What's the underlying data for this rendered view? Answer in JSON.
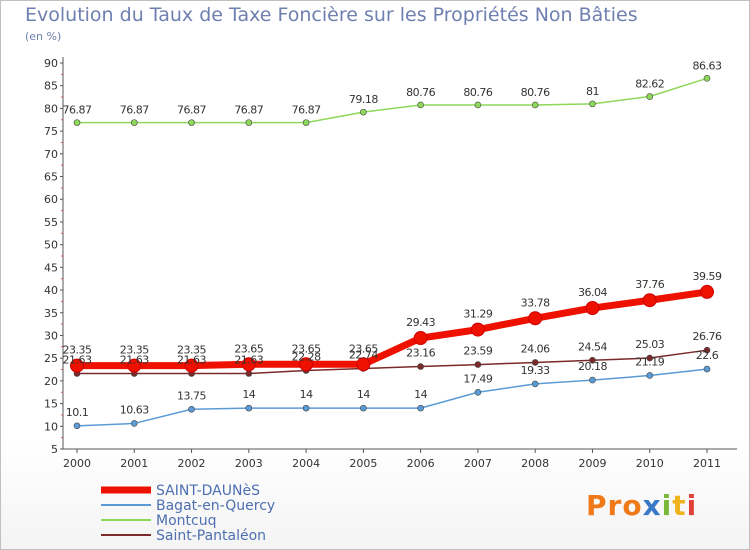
{
  "chart_data": {
    "type": "line",
    "title": "Evolution du Taux de Taxe Foncière sur les Propriétés Non Bâties",
    "subtitle": "(en %)",
    "categories": [
      "2000",
      "2001",
      "2002",
      "2003",
      "2004",
      "2005",
      "2006",
      "2007",
      "2008",
      "2009",
      "2010",
      "2011"
    ],
    "yticks": [
      5,
      10,
      15,
      20,
      25,
      30,
      35,
      40,
      45,
      50,
      55,
      60,
      65,
      70,
      75,
      80,
      85,
      90
    ],
    "ylim": [
      5,
      90
    ],
    "grid": false,
    "legend_position": "bottom-left",
    "series": [
      {
        "name": "SAINT-DAUNèS",
        "color": "#ee1100",
        "values": [
          23.35,
          23.35,
          23.35,
          23.65,
          23.65,
          23.65,
          29.43,
          31.29,
          33.78,
          36.04,
          37.76,
          39.59
        ],
        "labels": [
          "23.35",
          "23.35",
          "23.35",
          "23.65",
          "23.65",
          "23.65",
          "29.43",
          "31.29",
          "33.78",
          "36.04",
          "37.76",
          "39.59"
        ]
      },
      {
        "name": "Bagat-en-Quercy",
        "color": "#5b9bd5",
        "values": [
          10.1,
          10.63,
          13.75,
          14,
          14,
          14,
          14,
          17.49,
          19.33,
          20.18,
          21.19,
          22.6
        ],
        "labels": [
          "10.1",
          "10.63",
          "13.75",
          "14",
          "14",
          "14",
          "14",
          "17.49",
          "19.33",
          "20.18",
          "21.19",
          "22.6"
        ]
      },
      {
        "name": "Montcuq",
        "color": "#8ed85a",
        "values": [
          76.87,
          76.87,
          76.87,
          76.87,
          76.87,
          79.18,
          80.76,
          80.76,
          80.76,
          81,
          82.62,
          86.63
        ],
        "labels": [
          "76.87",
          "76.87",
          "76.87",
          "76.87",
          "76.87",
          "79.18",
          "80.76",
          "80.76",
          "80.76",
          "81",
          "82.62",
          "86.63"
        ]
      },
      {
        "name": "Saint-Pantaléon",
        "color": "#7a2a2a",
        "values": [
          21.63,
          21.63,
          21.63,
          21.63,
          22.28,
          22.74,
          23.16,
          23.59,
          24.06,
          24.54,
          25.03,
          26.76
        ],
        "labels": [
          "21.63",
          "21.63",
          "21.63",
          "21.63",
          "22.28",
          "22.74",
          "23.16",
          "23.59",
          "24.06",
          "24.54",
          "25.03",
          "26.76"
        ]
      }
    ]
  },
  "branding": {
    "logo_text": "Proxiti"
  }
}
